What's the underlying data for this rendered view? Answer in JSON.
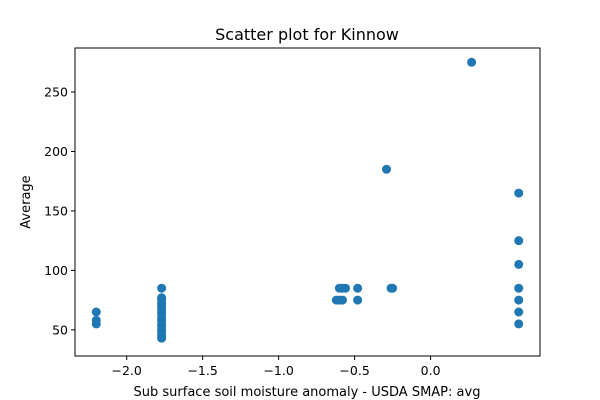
{
  "chart_data": {
    "type": "scatter",
    "title": "Scatter plot for Kinnow",
    "xlabel": "Sub surface soil moisture anomaly - USDA SMAP: avg",
    "ylabel": "Average",
    "xlim": [
      -2.34,
      0.72
    ],
    "ylim": [
      28,
      287
    ],
    "x_ticks": [
      -2.0,
      -1.5,
      -1.0,
      -0.5,
      0.0
    ],
    "x_tick_labels": [
      "−2.0",
      "−1.5",
      "−1.0",
      "−0.5",
      "0.0"
    ],
    "y_ticks": [
      50,
      100,
      150,
      200,
      250
    ],
    "y_tick_labels": [
      "50",
      "100",
      "150",
      "200",
      "250"
    ],
    "grid": false,
    "marker_color": "#1f77b4",
    "points": [
      {
        "x": -2.2,
        "y": 65
      },
      {
        "x": -2.2,
        "y": 58
      },
      {
        "x": -2.2,
        "y": 55
      },
      {
        "x": -1.77,
        "y": 85
      },
      {
        "x": -1.77,
        "y": 77
      },
      {
        "x": -1.77,
        "y": 75
      },
      {
        "x": -1.77,
        "y": 72
      },
      {
        "x": -1.77,
        "y": 70
      },
      {
        "x": -1.77,
        "y": 68
      },
      {
        "x": -1.77,
        "y": 65
      },
      {
        "x": -1.77,
        "y": 63
      },
      {
        "x": -1.77,
        "y": 60
      },
      {
        "x": -1.77,
        "y": 58
      },
      {
        "x": -1.77,
        "y": 55
      },
      {
        "x": -1.77,
        "y": 53
      },
      {
        "x": -1.77,
        "y": 50
      },
      {
        "x": -1.77,
        "y": 48
      },
      {
        "x": -1.77,
        "y": 45
      },
      {
        "x": -1.77,
        "y": 43
      },
      {
        "x": -0.62,
        "y": 75
      },
      {
        "x": -0.6,
        "y": 75
      },
      {
        "x": -0.58,
        "y": 75
      },
      {
        "x": -0.6,
        "y": 85
      },
      {
        "x": -0.58,
        "y": 85
      },
      {
        "x": -0.56,
        "y": 85
      },
      {
        "x": -0.48,
        "y": 85
      },
      {
        "x": -0.48,
        "y": 75
      },
      {
        "x": -0.29,
        "y": 185
      },
      {
        "x": -0.25,
        "y": 85
      },
      {
        "x": -0.26,
        "y": 85
      },
      {
        "x": 0.27,
        "y": 275
      },
      {
        "x": 0.58,
        "y": 165
      },
      {
        "x": 0.58,
        "y": 125
      },
      {
        "x": 0.58,
        "y": 105
      },
      {
        "x": 0.58,
        "y": 85
      },
      {
        "x": 0.58,
        "y": 75
      },
      {
        "x": 0.58,
        "y": 65
      },
      {
        "x": 0.58,
        "y": 55
      }
    ]
  }
}
